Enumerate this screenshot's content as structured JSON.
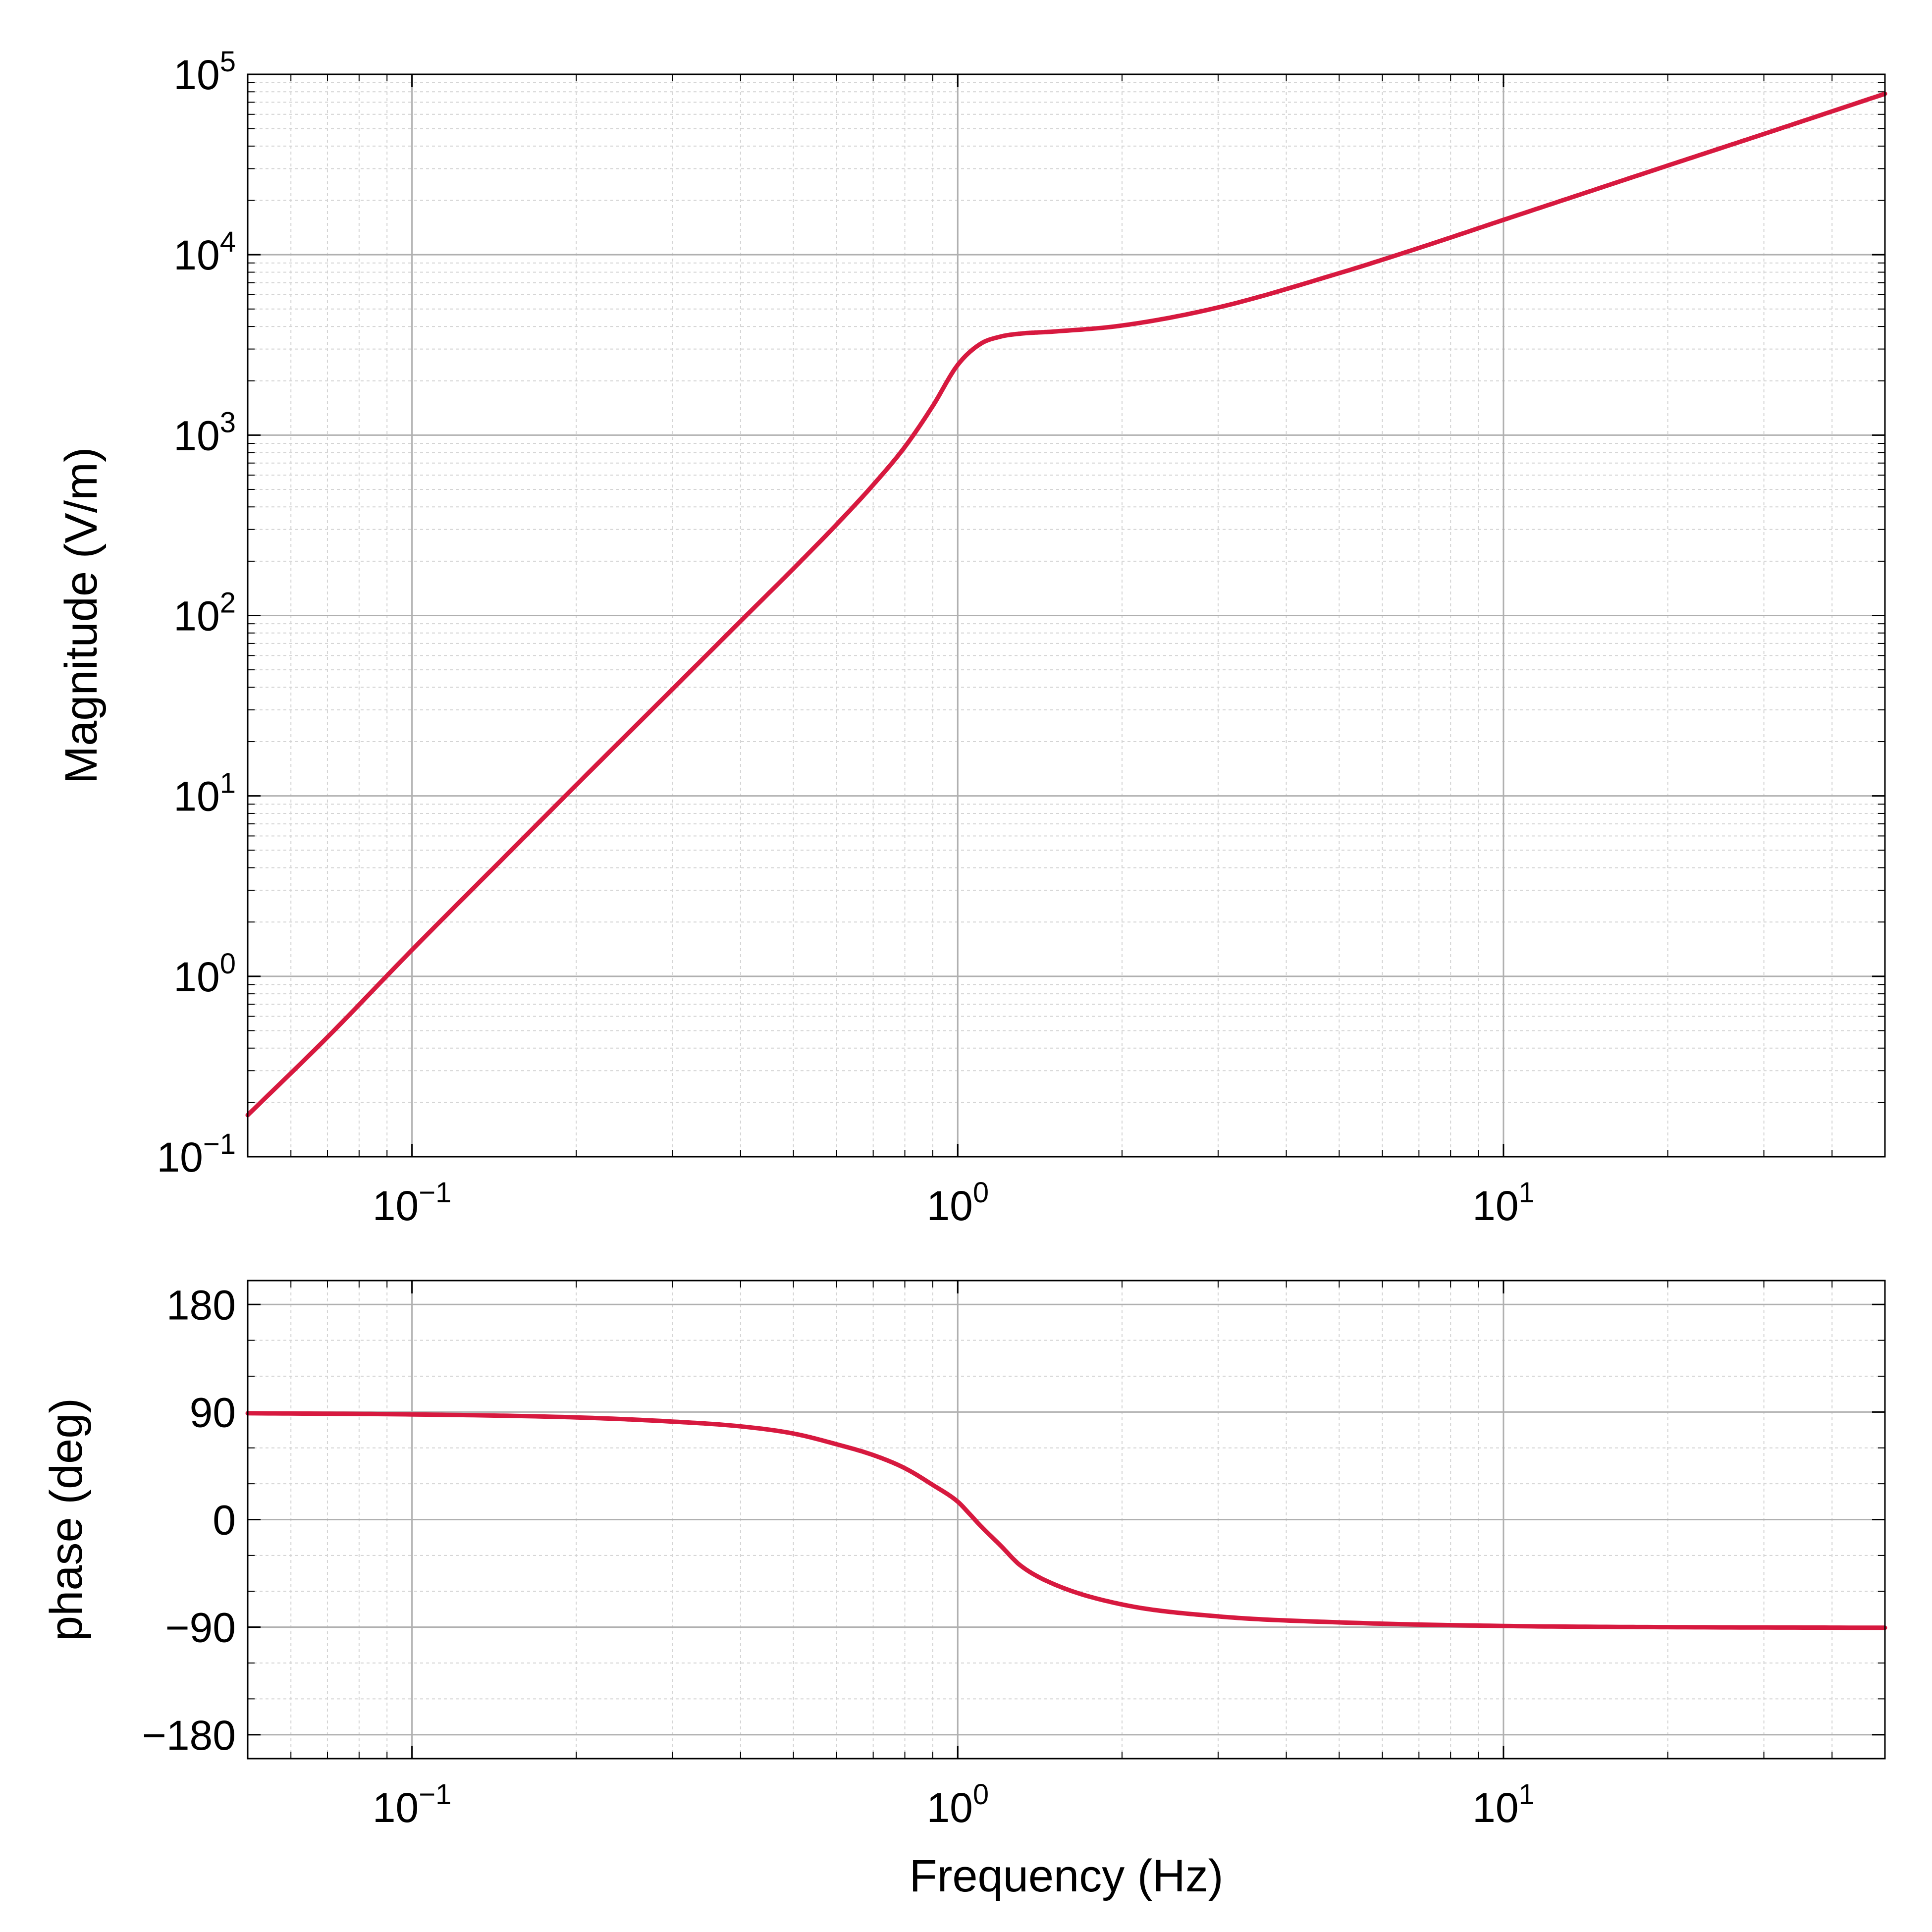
{
  "colors": {
    "curve": "#d7193f",
    "grid_major": "#b0b0b0",
    "grid_minor": "#d4d4d4",
    "frame": "#000000"
  },
  "chart_data": [
    {
      "type": "line",
      "panel": "magnitude",
      "title": "",
      "xlabel": "",
      "ylabel": "Magnitude (V/m)",
      "xscale": "log",
      "yscale": "log",
      "xlim": [
        0.05,
        50
      ],
      "ylim": [
        0.1,
        100000
      ],
      "grid": "major and minor",
      "x_ticks": [
        {
          "value": 0.1,
          "base": "10",
          "exp": "−1"
        },
        {
          "value": 1,
          "base": "10",
          "exp": "0"
        },
        {
          "value": 10,
          "base": "10",
          "exp": "1"
        }
      ],
      "y_ticks": [
        {
          "value": 0.1,
          "base": "10",
          "exp": "−1"
        },
        {
          "value": 1,
          "base": "10",
          "exp": "0"
        },
        {
          "value": 10,
          "base": "10",
          "exp": "1"
        },
        {
          "value": 100,
          "base": "10",
          "exp": "2"
        },
        {
          "value": 1000,
          "base": "10",
          "exp": "3"
        },
        {
          "value": 10000,
          "base": "10",
          "exp": "4"
        },
        {
          "value": 100000,
          "base": "10",
          "exp": "5"
        }
      ],
      "series": [
        {
          "x": [
            0.05,
            0.07,
            0.1,
            0.15,
            0.2,
            0.3,
            0.4,
            0.5,
            0.6,
            0.7,
            0.8,
            0.9,
            1.0,
            1.1,
            1.2,
            1.3,
            1.5,
            2.0,
            3.0,
            5.0,
            7.0,
            10,
            15,
            20,
            30,
            50
          ],
          "y": [
            0.17,
            0.46,
            1.4,
            4.8,
            11.5,
            39,
            93,
            182,
            320,
            530,
            860,
            1450,
            2450,
            3200,
            3520,
            3650,
            3750,
            4050,
            5100,
            7900,
            10900,
            15600,
            23400,
            31200,
            46700,
            78000
          ]
        }
      ]
    },
    {
      "type": "line",
      "panel": "phase",
      "title": "",
      "xlabel": "Frequency (Hz)",
      "ylabel": "phase (deg)",
      "xscale": "log",
      "yscale": "linear",
      "xlim": [
        0.05,
        50
      ],
      "ylim": [
        -200,
        200
      ],
      "grid": "major and minor",
      "x_ticks": [
        {
          "value": 0.1,
          "base": "10",
          "exp": "−1"
        },
        {
          "value": 1,
          "base": "10",
          "exp": "0"
        },
        {
          "value": 10,
          "base": "10",
          "exp": "1"
        }
      ],
      "y_ticks": [
        {
          "value": 180,
          "label": "180"
        },
        {
          "value": 90,
          "label": "90"
        },
        {
          "value": 0,
          "label": "0"
        },
        {
          "value": -90,
          "label": "−90"
        },
        {
          "value": -180,
          "label": "−180"
        }
      ],
      "series": [
        {
          "x": [
            0.05,
            0.1,
            0.2,
            0.3,
            0.4,
            0.5,
            0.6,
            0.7,
            0.8,
            0.9,
            1.0,
            1.05,
            1.1,
            1.2,
            1.3,
            1.5,
            2.0,
            3.0,
            5.0,
            10,
            20,
            50
          ],
          "y": [
            89,
            88,
            85.5,
            82,
            78,
            72,
            63,
            54,
            43,
            29,
            15,
            5,
            -5,
            -22,
            -38,
            -54,
            -71,
            -81,
            -86,
            -89,
            -90,
            -90.5
          ]
        }
      ]
    }
  ]
}
